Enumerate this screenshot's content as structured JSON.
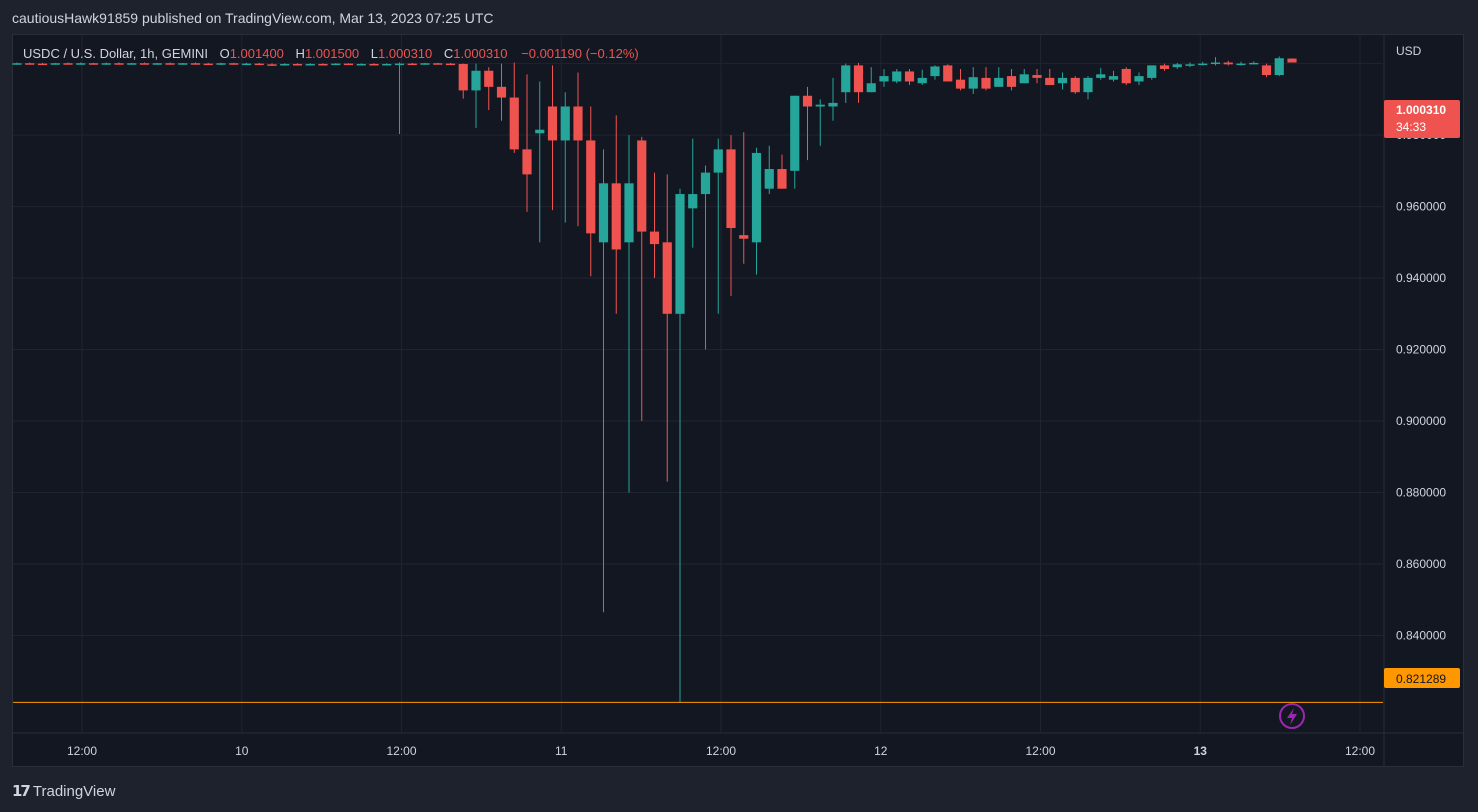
{
  "header": {
    "publisher": "cautiousHawk91859 published on TradingView.com, Mar 13, 2023 07:25 UTC"
  },
  "legend": {
    "symbol": "USDC / U.S. Dollar, 1h, GEMINI",
    "open_label": "O",
    "open": "1.001400",
    "high_label": "H",
    "high": "1.001500",
    "low_label": "L",
    "low": "1.000310",
    "close_label": "C",
    "close": "1.000310",
    "change": "−0.001190 (−0.12%)"
  },
  "footer": {
    "brand": "TradingView"
  },
  "colors": {
    "up": "#26a69a",
    "down": "#ef5350",
    "background": "#131722",
    "grid": "#1f2430",
    "low_line": "#ff9800",
    "text": "#d1d4dc"
  },
  "chart_data": {
    "type": "candlestick",
    "currency_label": "USD",
    "y_ticks": [
      "0.980000",
      "0.960000",
      "0.940000",
      "0.920000",
      "0.900000",
      "0.880000",
      "0.860000",
      "0.840000"
    ],
    "ylim": [
      0.813,
      1.008
    ],
    "x_ticks": [
      {
        "label": "12:00",
        "bold": false
      },
      {
        "label": "10",
        "bold": false
      },
      {
        "label": "12:00",
        "bold": false
      },
      {
        "label": "11",
        "bold": false
      },
      {
        "label": "12:00",
        "bold": false
      },
      {
        "label": "12",
        "bold": false
      },
      {
        "label": "12:00",
        "bold": false
      },
      {
        "label": "13",
        "bold": true
      },
      {
        "label": "12:00",
        "bold": false
      }
    ],
    "current_price": {
      "value": "1.000310",
      "countdown": "34:33",
      "color": "#ef5350"
    },
    "low_line": {
      "value": "0.821289",
      "color": "#ff9800"
    },
    "candles": [
      {
        "o": 1.0,
        "h": 1.0003,
        "l": 0.9997,
        "c": 1.0001
      },
      {
        "o": 1.0001,
        "h": 1.0003,
        "l": 0.9998,
        "c": 1.0
      },
      {
        "o": 1.0,
        "h": 1.0002,
        "l": 0.9997,
        "c": 0.9999
      },
      {
        "o": 0.9999,
        "h": 1.0002,
        "l": 0.9997,
        "c": 1.0001
      },
      {
        "o": 1.0001,
        "h": 1.0003,
        "l": 0.9998,
        "c": 1.0
      },
      {
        "o": 1.0,
        "h": 1.0003,
        "l": 0.9997,
        "c": 1.0001
      },
      {
        "o": 1.0001,
        "h": 1.0002,
        "l": 0.9997,
        "c": 0.9999
      },
      {
        "o": 0.9999,
        "h": 1.0003,
        "l": 0.9997,
        "c": 1.0001
      },
      {
        "o": 1.0001,
        "h": 1.0003,
        "l": 0.9998,
        "c": 0.9999
      },
      {
        "o": 0.9999,
        "h": 1.0002,
        "l": 0.9997,
        "c": 1.0001
      },
      {
        "o": 1.0001,
        "h": 1.0003,
        "l": 0.9998,
        "c": 1.0
      },
      {
        "o": 1.0,
        "h": 1.0002,
        "l": 0.9997,
        "c": 1.0001
      },
      {
        "o": 1.0001,
        "h": 1.0003,
        "l": 0.9998,
        "c": 0.9999
      },
      {
        "o": 0.9999,
        "h": 1.0002,
        "l": 0.9997,
        "c": 1.0001
      },
      {
        "o": 1.0001,
        "h": 1.0003,
        "l": 0.9998,
        "c": 1.0
      },
      {
        "o": 1.0,
        "h": 1.0002,
        "l": 0.9997,
        "c": 0.9999
      },
      {
        "o": 0.9999,
        "h": 1.0002,
        "l": 0.9996,
        "c": 1.0001
      },
      {
        "o": 1.0001,
        "h": 1.0002,
        "l": 0.9997,
        "c": 0.9998
      },
      {
        "o": 0.9998,
        "h": 1.0002,
        "l": 0.9996,
        "c": 1.0
      },
      {
        "o": 1.0,
        "h": 1.0002,
        "l": 0.9996,
        "c": 0.9998
      },
      {
        "o": 0.9998,
        "h": 1.0001,
        "l": 0.9995,
        "c": 0.9996
      },
      {
        "o": 0.9996,
        "h": 1.0001,
        "l": 0.9994,
        "c": 0.9999
      },
      {
        "o": 0.9999,
        "h": 1.0001,
        "l": 0.9995,
        "c": 0.9996
      },
      {
        "o": 0.9996,
        "h": 1.0001,
        "l": 0.9995,
        "c": 0.9999
      },
      {
        "o": 0.9999,
        "h": 1.0001,
        "l": 0.9996,
        "c": 0.9997
      },
      {
        "o": 0.9997,
        "h": 1.0001,
        "l": 0.9996,
        "c": 1.0
      },
      {
        "o": 1.0,
        "h": 1.0001,
        "l": 0.9996,
        "c": 0.9998
      },
      {
        "o": 0.9998,
        "h": 1.0001,
        "l": 0.9995,
        "c": 0.9999
      },
      {
        "o": 0.9999,
        "h": 1.0001,
        "l": 0.9996,
        "c": 0.9998
      },
      {
        "o": 0.9998,
        "h": 1.0001,
        "l": 0.9996,
        "c": 0.9999
      },
      {
        "o": 0.9999,
        "h": 1.0003,
        "l": 0.9803,
        "c": 1.0
      },
      {
        "o": 1.0,
        "h": 1.0002,
        "l": 0.9996,
        "c": 0.9999
      },
      {
        "o": 0.9999,
        "h": 1.0002,
        "l": 0.9997,
        "c": 1.0001
      },
      {
        "o": 1.0001,
        "h": 1.0002,
        "l": 0.9998,
        "c": 1.0
      },
      {
        "o": 1.0,
        "h": 1.0002,
        "l": 0.9998,
        "c": 0.9999
      },
      {
        "o": 0.9999,
        "h": 1.0,
        "l": 0.9902,
        "c": 0.9925
      },
      {
        "o": 0.9925,
        "h": 1.0,
        "l": 0.982,
        "c": 0.998
      },
      {
        "o": 0.998,
        "h": 0.999,
        "l": 0.987,
        "c": 0.9935
      },
      {
        "o": 0.9935,
        "h": 1.0,
        "l": 0.984,
        "c": 0.9905
      },
      {
        "o": 0.9905,
        "h": 1.0003,
        "l": 0.975,
        "c": 0.976
      },
      {
        "o": 0.976,
        "h": 0.997,
        "l": 0.9585,
        "c": 0.969
      },
      {
        "o": 0.9805,
        "h": 0.995,
        "l": 0.95,
        "c": 0.9815
      },
      {
        "o": 0.988,
        "h": 0.9995,
        "l": 0.959,
        "c": 0.9785
      },
      {
        "o": 0.9785,
        "h": 0.992,
        "l": 0.9555,
        "c": 0.988
      },
      {
        "o": 0.988,
        "h": 0.9975,
        "l": 0.9545,
        "c": 0.9785
      },
      {
        "o": 0.9785,
        "h": 0.988,
        "l": 0.9405,
        "c": 0.9525
      },
      {
        "o": 0.95,
        "h": 0.976,
        "l": 0.8465,
        "c": 0.9665
      },
      {
        "o": 0.9665,
        "h": 0.9855,
        "l": 0.93,
        "c": 0.948
      },
      {
        "o": 0.95,
        "h": 0.98,
        "l": 0.88,
        "c": 0.9665
      },
      {
        "o": 0.9785,
        "h": 0.9795,
        "l": 0.9,
        "c": 0.953
      },
      {
        "o": 0.953,
        "h": 0.9695,
        "l": 0.94,
        "c": 0.9495
      },
      {
        "o": 0.95,
        "h": 0.969,
        "l": 0.883,
        "c": 0.93
      },
      {
        "o": 0.93,
        "h": 0.965,
        "l": 0.8213,
        "c": 0.9635
      },
      {
        "o": 0.9595,
        "h": 0.979,
        "l": 0.9485,
        "c": 0.9635
      },
      {
        "o": 0.9635,
        "h": 0.9715,
        "l": 0.92,
        "c": 0.9695
      },
      {
        "o": 0.9695,
        "h": 0.979,
        "l": 0.93,
        "c": 0.976
      },
      {
        "o": 0.976,
        "h": 0.98,
        "l": 0.935,
        "c": 0.954
      },
      {
        "o": 0.952,
        "h": 0.9808,
        "l": 0.944,
        "c": 0.951
      },
      {
        "o": 0.95,
        "h": 0.9765,
        "l": 0.941,
        "c": 0.975
      },
      {
        "o": 0.965,
        "h": 0.977,
        "l": 0.9635,
        "c": 0.9705
      },
      {
        "o": 0.9705,
        "h": 0.9745,
        "l": 0.965,
        "c": 0.965
      },
      {
        "o": 0.97,
        "h": 0.991,
        "l": 0.965,
        "c": 0.991
      },
      {
        "o": 0.991,
        "h": 0.9935,
        "l": 0.973,
        "c": 0.988
      },
      {
        "o": 0.988,
        "h": 0.99,
        "l": 0.977,
        "c": 0.9885
      },
      {
        "o": 0.988,
        "h": 0.996,
        "l": 0.984,
        "c": 0.989
      },
      {
        "o": 0.992,
        "h": 1.0,
        "l": 0.989,
        "c": 0.9995
      },
      {
        "o": 0.9995,
        "h": 1.0002,
        "l": 0.989,
        "c": 0.992
      },
      {
        "o": 0.992,
        "h": 0.999,
        "l": 0.992,
        "c": 0.9945
      },
      {
        "o": 0.995,
        "h": 0.9985,
        "l": 0.9935,
        "c": 0.9965
      },
      {
        "o": 0.995,
        "h": 0.9985,
        "l": 0.9945,
        "c": 0.9978
      },
      {
        "o": 0.9978,
        "h": 0.9985,
        "l": 0.994,
        "c": 0.995
      },
      {
        "o": 0.9945,
        "h": 0.9983,
        "l": 0.994,
        "c": 0.996
      },
      {
        "o": 0.9965,
        "h": 0.9995,
        "l": 0.9955,
        "c": 0.9992
      },
      {
        "o": 0.9995,
        "h": 0.9998,
        "l": 0.995,
        "c": 0.995
      },
      {
        "o": 0.9955,
        "h": 0.9985,
        "l": 0.9925,
        "c": 0.993
      },
      {
        "o": 0.993,
        "h": 0.999,
        "l": 0.9915,
        "c": 0.9962
      },
      {
        "o": 0.996,
        "h": 0.999,
        "l": 0.9925,
        "c": 0.993
      },
      {
        "o": 0.9935,
        "h": 0.999,
        "l": 0.9935,
        "c": 0.996
      },
      {
        "o": 0.9965,
        "h": 0.9985,
        "l": 0.9925,
        "c": 0.9935
      },
      {
        "o": 0.9945,
        "h": 0.9985,
        "l": 0.9945,
        "c": 0.997
      },
      {
        "o": 0.9968,
        "h": 0.9985,
        "l": 0.9945,
        "c": 0.996
      },
      {
        "o": 0.996,
        "h": 0.9985,
        "l": 0.994,
        "c": 0.994
      },
      {
        "o": 0.9945,
        "h": 0.9975,
        "l": 0.9928,
        "c": 0.996
      },
      {
        "o": 0.996,
        "h": 0.9965,
        "l": 0.9915,
        "c": 0.992
      },
      {
        "o": 0.992,
        "h": 0.9965,
        "l": 0.99,
        "c": 0.996
      },
      {
        "o": 0.996,
        "h": 0.9988,
        "l": 0.9955,
        "c": 0.997
      },
      {
        "o": 0.9955,
        "h": 0.998,
        "l": 0.995,
        "c": 0.9965
      },
      {
        "o": 0.9985,
        "h": 0.999,
        "l": 0.994,
        "c": 0.9945
      },
      {
        "o": 0.995,
        "h": 0.9975,
        "l": 0.994,
        "c": 0.9965
      },
      {
        "o": 0.996,
        "h": 0.9995,
        "l": 0.9955,
        "c": 0.9995
      },
      {
        "o": 0.9995,
        "h": 1.0,
        "l": 0.998,
        "c": 0.9985
      },
      {
        "o": 0.999,
        "h": 1.0002,
        "l": 0.9985,
        "c": 0.9998
      },
      {
        "o": 0.9995,
        "h": 1.0003,
        "l": 0.999,
        "c": 0.9998
      },
      {
        "o": 0.9998,
        "h": 1.0005,
        "l": 0.9995,
        "c": 1.0
      },
      {
        "o": 1.0,
        "h": 1.0018,
        "l": 0.9995,
        "c": 1.0003
      },
      {
        "o": 1.0003,
        "h": 1.0008,
        "l": 0.9995,
        "c": 0.9998
      },
      {
        "o": 0.9998,
        "h": 1.0005,
        "l": 0.9995,
        "c": 1.0
      },
      {
        "o": 1.0,
        "h": 1.0006,
        "l": 0.9998,
        "c": 1.0002
      },
      {
        "o": 0.9995,
        "h": 1.0,
        "l": 0.9962,
        "c": 0.9968
      },
      {
        "o": 0.9968,
        "h": 1.002,
        "l": 0.9965,
        "c": 1.0015
      },
      {
        "o": 1.0014,
        "h": 1.0015,
        "l": 1.0003,
        "c": 1.0003
      }
    ]
  }
}
